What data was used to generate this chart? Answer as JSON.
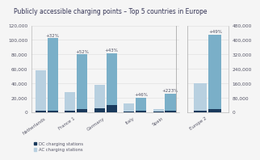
{
  "title": "Publicly accessible charging points – Top 5 countries in Europe",
  "title_fontsize": 5.5,
  "countries": [
    "Netherlands",
    "France 1",
    "Germany",
    "Italy",
    "Spain"
  ],
  "europe_label": "Europe 2",
  "bar_width": 0.28,
  "colors": {
    "DC_prev": "#1a3a5c",
    "DC_curr": "#1a3a5c",
    "AC_prev": "#b8d0e0",
    "AC_curr": "#7aafc8"
  },
  "left_ylim": [
    0,
    120000
  ],
  "left_yticks": [
    0,
    20000,
    40000,
    60000,
    80000,
    100000,
    120000
  ],
  "right_ylim": [
    0,
    480000
  ],
  "right_yticks": [
    0,
    80000,
    160000,
    240000,
    320000,
    400000,
    480000
  ],
  "pct_labels": [
    "+32%",
    "+52%",
    "+43%",
    "+46%",
    "+223%"
  ],
  "europe_pct": "+49%",
  "prev_DC": [
    1500,
    1800,
    5500,
    1000,
    400
  ],
  "prev_AC": [
    57000,
    26000,
    32000,
    11500,
    4000
  ],
  "curr_DC": [
    2500,
    4000,
    9500,
    2000,
    1800
  ],
  "curr_AC": [
    100000,
    76000,
    72000,
    18500,
    24000
  ],
  "europe_prev_DC": 7000,
  "europe_prev_AC": 153000,
  "europe_curr_DC": 16000,
  "europe_curr_AC": 414000,
  "legend_DC": "DC charging stations",
  "legend_AC": "AC charging stations",
  "bg_color": "#f5f5f5",
  "text_color": "#555566",
  "tick_fontsize": 4.2,
  "label_fontsize": 4.0,
  "pct_fontsize": 4.0,
  "legend_fontsize": 3.8,
  "grid_color": "#dddddd",
  "spine_color": "#aaaaaa"
}
